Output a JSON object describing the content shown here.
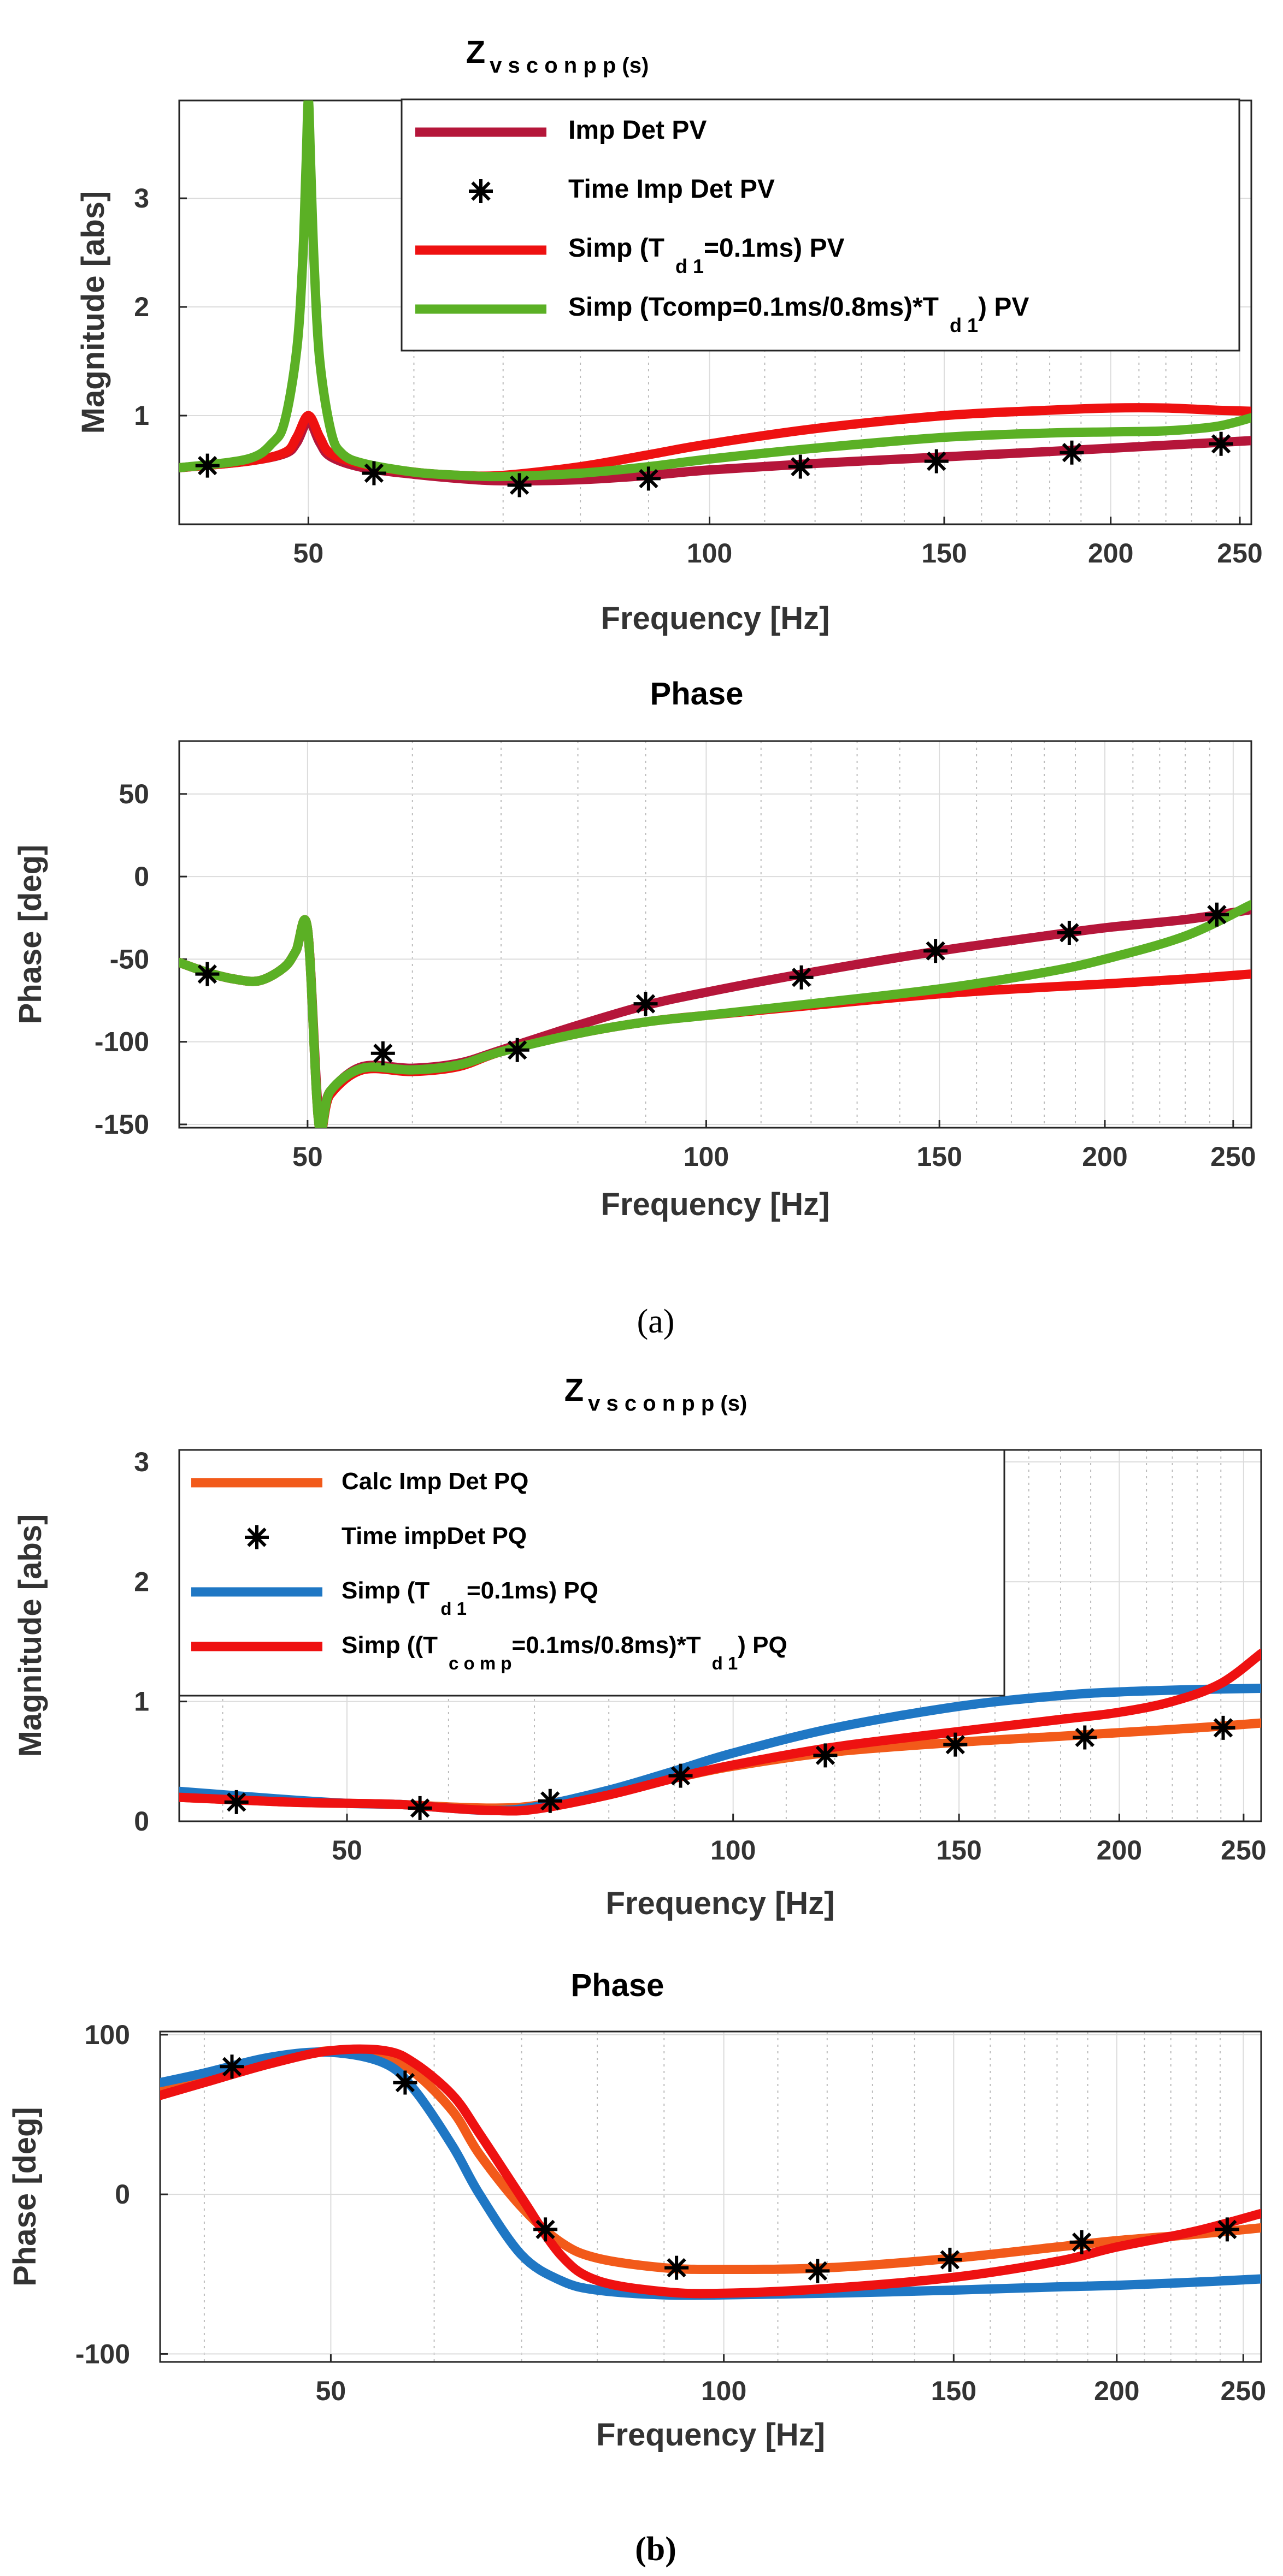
{
  "chart_data": [
    {
      "id": "a_mag",
      "type": "line",
      "title_main": "Z",
      "title_sub": "v s c o n p p (s)",
      "xlabel": "Frequency [Hz]",
      "ylabel": "Magnitude [abs]",
      "xscale": "log",
      "xlim": [
        40,
        255
      ],
      "ylim": [
        0,
        3.9
      ],
      "xticks": [
        50,
        100,
        150,
        200,
        250
      ],
      "xtick_labels": [
        "50",
        "100",
        "150",
        "200",
        "250"
      ],
      "yticks": [
        1,
        2,
        3
      ],
      "ytick_labels": [
        "1",
        "2",
        "3"
      ],
      "legend": [
        {
          "parts": [
            {
              "t": " Imp  Det PV"
            }
          ]
        },
        {
          "parts": [
            {
              "t": "Time Imp Det PV"
            }
          ]
        },
        {
          "parts": [
            {
              "t": "Simp (T"
            },
            {
              "t": "d 1",
              "sub": true
            },
            {
              "t": "=0.1ms) PV"
            }
          ]
        },
        {
          "parts": [
            {
              "t": "Simp (Tcomp=0.1ms/0.8ms)*T"
            },
            {
              "t": "d 1",
              "sub": true
            },
            {
              "t": ") PV"
            }
          ]
        }
      ],
      "series": [
        {
          "name": "Imp Det PV",
          "style": "line",
          "color": "#b5163a",
          "x": [
            40,
            45,
            48,
            49,
            50,
            51,
            52,
            55,
            60,
            65,
            70,
            80,
            90,
            100,
            120,
            150,
            180,
            200,
            230,
            255
          ],
          "y": [
            0.52,
            0.58,
            0.65,
            0.75,
            0.95,
            0.75,
            0.62,
            0.52,
            0.46,
            0.42,
            0.4,
            0.41,
            0.45,
            0.5,
            0.56,
            0.62,
            0.67,
            0.7,
            0.74,
            0.77
          ]
        },
        {
          "name": "Time Imp Det PV",
          "style": "marker",
          "color": "#000000",
          "x": [
            42,
            56,
            72,
            90,
            117,
            148,
            187,
            242
          ],
          "y": [
            0.54,
            0.47,
            0.36,
            0.42,
            0.53,
            0.58,
            0.66,
            0.74
          ]
        },
        {
          "name": "Simp (Td1=0.1ms) PV",
          "style": "line",
          "color": "#ee1111",
          "x": [
            40,
            45,
            48,
            49,
            50,
            51,
            52,
            55,
            60,
            65,
            70,
            80,
            90,
            100,
            120,
            150,
            180,
            200,
            220,
            240,
            255
          ],
          "y": [
            0.52,
            0.58,
            0.66,
            0.8,
            1.0,
            0.8,
            0.65,
            0.55,
            0.48,
            0.45,
            0.45,
            0.53,
            0.64,
            0.74,
            0.88,
            1.0,
            1.05,
            1.07,
            1.07,
            1.05,
            1.04
          ]
        },
        {
          "name": "Simp (Tcomp=0.1ms/0.8ms)*Td1 PV",
          "style": "line",
          "color": "#5bb025",
          "x": [
            40,
            45,
            47,
            48,
            49,
            49.5,
            49.8,
            50,
            50.2,
            50.5,
            51,
            52,
            53,
            55,
            60,
            65,
            70,
            80,
            90,
            100,
            120,
            150,
            180,
            200,
            220,
            240,
            255
          ],
          "y": [
            0.52,
            0.6,
            0.75,
            0.95,
            1.6,
            2.4,
            3.3,
            3.9,
            3.3,
            2.4,
            1.5,
            0.85,
            0.65,
            0.56,
            0.48,
            0.45,
            0.44,
            0.47,
            0.53,
            0.6,
            0.7,
            0.8,
            0.84,
            0.85,
            0.86,
            0.9,
            0.98
          ]
        }
      ]
    },
    {
      "id": "a_phase",
      "type": "line",
      "title_main": "Phase",
      "xlabel": "Frequency [Hz]",
      "ylabel": "Phase [deg]",
      "xscale": "log",
      "xlim": [
        40,
        258
      ],
      "ylim": [
        -152,
        82
      ],
      "xticks": [
        50,
        100,
        150,
        200,
        250
      ],
      "xtick_labels": [
        "50",
        "100",
        "150",
        "200",
        "250"
      ],
      "yticks": [
        50,
        0,
        -50,
        -100,
        -150
      ],
      "ytick_labels": [
        "50",
        "0",
        "-50",
        "-100",
        "-150"
      ],
      "series": [
        {
          "name": "Imp Det PV",
          "style": "line",
          "color": "#b5163a",
          "x": [
            40,
            42,
            44,
            46,
            48,
            49,
            50,
            51,
            52,
            55,
            60,
            65,
            70,
            80,
            90,
            100,
            120,
            150,
            180,
            200,
            230,
            258
          ],
          "y": [
            -52,
            -58,
            -62,
            -63,
            -55,
            -45,
            -32,
            -145,
            -130,
            -115,
            -116,
            -113,
            -105,
            -90,
            -78,
            -70,
            -58,
            -45,
            -36,
            -31,
            -26,
            -20
          ]
        },
        {
          "name": "Time Imp Det PV",
          "style": "marker",
          "color": "#000000",
          "x": [
            42,
            57,
            72,
            90,
            118,
            149,
            188,
            243
          ],
          "y": [
            -59,
            -107,
            -105,
            -77,
            -61,
            -45,
            -34,
            -23
          ]
        },
        {
          "name": "Simp (Td1=0.1ms) PV",
          "style": "line",
          "color": "#ee1111",
          "x": [
            40,
            42,
            44,
            46,
            48,
            49,
            50,
            51,
            52,
            55,
            60,
            65,
            70,
            80,
            90,
            100,
            120,
            150,
            180,
            200,
            230,
            258
          ],
          "y": [
            -52,
            -58,
            -62,
            -63,
            -55,
            -45,
            -32,
            -150,
            -132,
            -117,
            -118,
            -115,
            -106,
            -95,
            -88,
            -84,
            -78,
            -71,
            -67,
            -65,
            -62,
            -59
          ]
        },
        {
          "name": "Simp (Tcomp=0.1ms/0.8ms)*Td1 PV",
          "style": "line",
          "color": "#5bb025",
          "x": [
            40,
            42,
            44,
            46,
            48,
            49,
            50,
            51,
            52,
            55,
            60,
            65,
            70,
            80,
            90,
            100,
            120,
            150,
            180,
            200,
            230,
            258
          ],
          "y": [
            -52,
            -58,
            -62,
            -63,
            -55,
            -45,
            -32,
            -150,
            -130,
            -116,
            -117,
            -114,
            -106,
            -95,
            -88,
            -84,
            -77,
            -68,
            -58,
            -50,
            -36,
            -17
          ]
        }
      ]
    },
    {
      "id": "b_mag",
      "type": "line",
      "title_main": "Z",
      "title_sub": "v s c o n p p (s)",
      "xlabel": "Frequency [Hz]",
      "ylabel": "Magnitude [abs]",
      "xscale": "log",
      "xlim": [
        37,
        258
      ],
      "ylim": [
        0,
        3.1
      ],
      "xticks": [
        50,
        100,
        150,
        200,
        250
      ],
      "xtick_labels": [
        "50",
        "100",
        "150",
        "200",
        "250"
      ],
      "yticks": [
        0,
        1,
        2,
        3
      ],
      "ytick_labels": [
        "0",
        "1",
        "2",
        "3"
      ],
      "legend": [
        {
          "parts": [
            {
              "t": "Calc Imp Det PQ"
            }
          ]
        },
        {
          "parts": [
            {
              "t": "Time  impDet PQ"
            }
          ]
        },
        {
          "parts": [
            {
              "t": "Simp (T"
            },
            {
              "t": "d 1",
              "sub": true
            },
            {
              "t": "=0.1ms) PQ"
            }
          ]
        },
        {
          "parts": [
            {
              "t": "Simp ((T"
            },
            {
              "t": "c o m p",
              "sub": true
            },
            {
              "t": "=0.1ms/0.8ms)*T"
            },
            {
              "t": "d 1",
              "sub": true
            },
            {
              "t": ") PQ"
            }
          ]
        }
      ],
      "series": [
        {
          "name": "Calc Imp Det PQ",
          "style": "line",
          "color": "#f25a1a",
          "x": [
            37,
            45,
            50,
            55,
            60,
            65,
            70,
            80,
            90,
            100,
            120,
            150,
            180,
            200,
            230,
            258
          ],
          "y": [
            0.2,
            0.16,
            0.15,
            0.14,
            0.12,
            0.11,
            0.13,
            0.24,
            0.36,
            0.46,
            0.58,
            0.66,
            0.71,
            0.74,
            0.78,
            0.82
          ]
        },
        {
          "name": "Time impDet PQ",
          "style": "marker",
          "color": "#000000",
          "x": [
            41,
            57,
            72,
            91,
            118,
            149,
            188,
            241
          ],
          "y": [
            0.16,
            0.11,
            0.17,
            0.38,
            0.55,
            0.64,
            0.7,
            0.78
          ]
        },
        {
          "name": "Simp (Td1=0.1ms) PQ",
          "style": "line",
          "color": "#1f77c4",
          "x": [
            37,
            45,
            50,
            55,
            60,
            65,
            70,
            80,
            90,
            100,
            120,
            150,
            180,
            200,
            230,
            258
          ],
          "y": [
            0.25,
            0.18,
            0.15,
            0.14,
            0.11,
            0.09,
            0.12,
            0.26,
            0.42,
            0.57,
            0.78,
            0.96,
            1.05,
            1.08,
            1.1,
            1.11
          ]
        },
        {
          "name": "Simp ((Tcomp=0.1ms/0.8ms)*Td1) PQ",
          "style": "line",
          "color": "#ee1111",
          "x": [
            37,
            45,
            50,
            55,
            60,
            65,
            70,
            80,
            90,
            100,
            120,
            150,
            180,
            200,
            220,
            240,
            258
          ],
          "y": [
            0.2,
            0.16,
            0.15,
            0.14,
            0.11,
            0.09,
            0.1,
            0.22,
            0.36,
            0.47,
            0.62,
            0.75,
            0.85,
            0.91,
            1.0,
            1.15,
            1.4
          ]
        }
      ]
    },
    {
      "id": "b_phase",
      "type": "line",
      "title_main": "Phase",
      "xlabel": "Frequency [Hz]",
      "ylabel": "Phase [deg]",
      "xscale": "log",
      "xlim": [
        37,
        258
      ],
      "ylim": [
        -105,
        102
      ],
      "xticks": [
        50,
        100,
        150,
        200,
        250
      ],
      "xtick_labels": [
        "50",
        "100",
        "150",
        "200",
        "250"
      ],
      "yticks": [
        100,
        0,
        -100
      ],
      "ytick_labels": [
        "100",
        "0",
        "-100"
      ],
      "series": [
        {
          "name": "Calc Imp Det PQ",
          "style": "line",
          "color": "#f25a1a",
          "x": [
            37,
            40,
            45,
            50,
            55,
            58,
            62,
            65,
            70,
            75,
            80,
            90,
            100,
            120,
            150,
            180,
            200,
            230,
            258
          ],
          "y": [
            66,
            72,
            83,
            90,
            86,
            76,
            52,
            25,
            -8,
            -30,
            -40,
            -46,
            -47,
            -46,
            -40,
            -33,
            -29,
            -25,
            -21
          ]
        },
        {
          "name": "Time impDet PQ",
          "style": "marker",
          "color": "#000000",
          "x": [
            42,
            57,
            73,
            92,
            118,
            149,
            188,
            243
          ],
          "y": [
            80,
            70,
            -22,
            -46,
            -48,
            -41,
            -30,
            -22
          ]
        },
        {
          "name": "Simp (Td1=0.1ms) PQ",
          "style": "line",
          "color": "#1f77c4",
          "x": [
            37,
            40,
            45,
            50,
            55,
            58,
            62,
            65,
            70,
            75,
            80,
            90,
            100,
            120,
            150,
            180,
            200,
            230,
            258
          ],
          "y": [
            70,
            76,
            86,
            89,
            82,
            65,
            30,
            0,
            -38,
            -54,
            -60,
            -63,
            -63,
            -62,
            -60,
            -58,
            -57,
            -55,
            -53
          ]
        },
        {
          "name": "Simp ((Tcomp=0.1ms/0.8ms)*Td1) PQ",
          "style": "line",
          "color": "#ee1111",
          "x": [
            37,
            40,
            45,
            50,
            55,
            58,
            62,
            65,
            70,
            75,
            80,
            90,
            100,
            120,
            150,
            180,
            200,
            230,
            258
          ],
          "y": [
            62,
            70,
            82,
            90,
            90,
            82,
            62,
            38,
            -2,
            -38,
            -54,
            -61,
            -62,
            -59,
            -52,
            -42,
            -33,
            -23,
            -12
          ]
        }
      ]
    }
  ],
  "captions": {
    "a": "(a)",
    "b": "(b)"
  }
}
